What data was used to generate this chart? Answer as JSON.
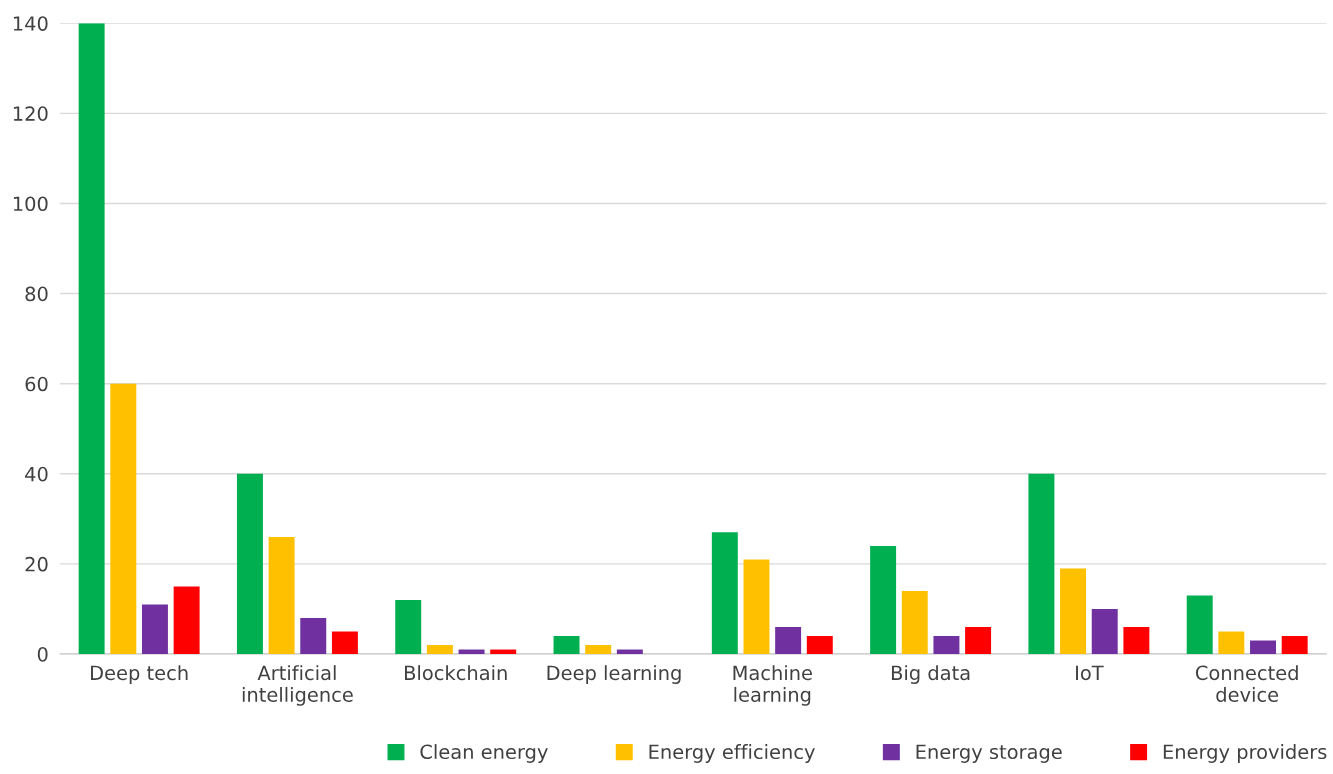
{
  "chart_data": {
    "type": "bar",
    "categories": [
      "Deep tech",
      "Artificial\nintelligence",
      "Blockchain",
      "Deep learning",
      "Machine\nlearning",
      "Big data",
      "IoT",
      "Connected\ndevice"
    ],
    "series": [
      {
        "name": "Clean energy",
        "color": "#00b050",
        "values": [
          140,
          40,
          12,
          4,
          27,
          24,
          40,
          13
        ]
      },
      {
        "name": "Energy efficiency",
        "color": "#ffc000",
        "values": [
          60,
          26,
          2,
          2,
          21,
          14,
          19,
          5
        ]
      },
      {
        "name": "Energy storage",
        "color": "#7030a0",
        "values": [
          11,
          8,
          1,
          1,
          6,
          4,
          10,
          3
        ]
      },
      {
        "name": "Energy providers",
        "color": "#ff0000",
        "values": [
          15,
          5,
          1,
          0,
          4,
          6,
          6,
          4
        ]
      }
    ],
    "ylim": [
      0,
      140
    ],
    "yticks": [
      0,
      20,
      40,
      60,
      80,
      100,
      120,
      140
    ],
    "grid": "y",
    "legend": "bottom"
  }
}
